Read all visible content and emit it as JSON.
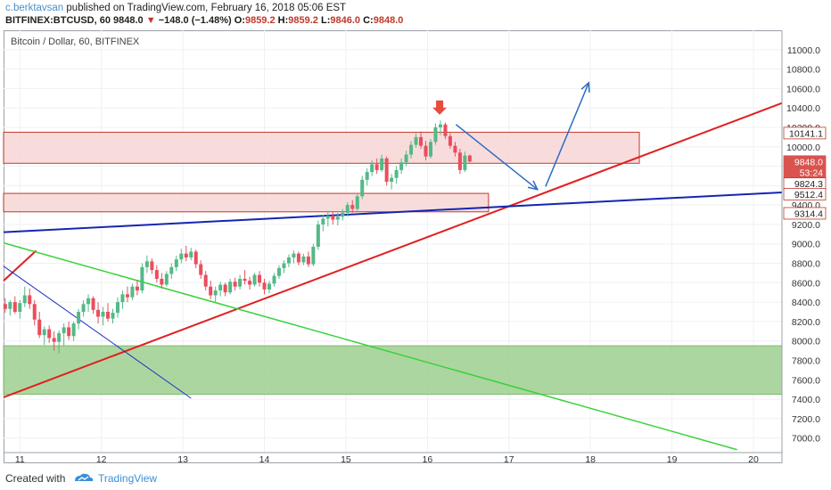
{
  "header": {
    "author": "c.berktavsan",
    "published_text": "published on TradingView.com, February 16, 2018 05:06 EST",
    "symbol": "BITFINEX:BTCUSD, 60",
    "last": "9848.0",
    "change": "−148.0 (−1.48%)",
    "o_label": "O:",
    "o": "9859.2",
    "h_label": "H:",
    "h": "9859.2",
    "l_label": "L:",
    "l": "9846.0",
    "c_label": "C:",
    "c": "9848.0"
  },
  "footer": {
    "created": "Created with",
    "brand": "TradingView"
  },
  "chart_data": {
    "type": "candlestick",
    "title": "Bitcoin / Dollar, 60, BITFINEX",
    "x_ticks": [
      "11",
      "12",
      "13",
      "14",
      "15",
      "16",
      "17",
      "18",
      "19",
      "20"
    ],
    "y_ticks": [
      7000,
      7200,
      7400,
      7600,
      7800,
      8000,
      8200,
      8400,
      8600,
      8800,
      9000,
      9200,
      9400,
      9600,
      9800,
      10000,
      10200,
      10400,
      10600,
      10800,
      11000
    ],
    "ylim": [
      6850,
      11200
    ],
    "xlim": [
      10.8,
      20.35
    ],
    "price_labels": [
      {
        "text": "10141.1",
        "value": 10141.1,
        "bg": "#ffffff",
        "color": "#222222"
      },
      {
        "text": "9848.0",
        "value": 9848.0,
        "bg": "#d9534f",
        "color": "#ffffff"
      },
      {
        "text": "53:24",
        "value": 9735,
        "bg": "#d9534f",
        "color": "#ffffff"
      },
      {
        "text": "9824.3",
        "value": 9824.3,
        "bg": "#ffffff",
        "color": "#222222",
        "y_val": 9620
      },
      {
        "text": "9512.4",
        "value": 9512.4,
        "bg": "#ffffff",
        "color": "#222222"
      },
      {
        "text": "9314.4",
        "value": 9314.4,
        "bg": "#ffffff",
        "color": "#222222"
      }
    ],
    "zones": [
      {
        "x1": 10.8,
        "x2": 18.6,
        "y1": 9830,
        "y2": 10150,
        "fill": "#f7d6d6",
        "stroke": "#c0392b"
      },
      {
        "x1": 10.8,
        "x2": 16.75,
        "y1": 9330,
        "y2": 9520,
        "fill": "#f7d6d6",
        "stroke": "#c0392b"
      },
      {
        "x1": 10.8,
        "x2": 20.35,
        "y1": 7450,
        "y2": 7950,
        "fill": "#9ecf8f",
        "stroke": "#7fb86f"
      }
    ],
    "lines": [
      {
        "x1": 10.8,
        "y1": 7420,
        "x2": 20.35,
        "y2": 10450,
        "color": "#e02020",
        "width": 2
      },
      {
        "x1": 10.8,
        "y1": 8620,
        "x2": 11.2,
        "y2": 8930,
        "color": "#e02020",
        "width": 2
      },
      {
        "x1": 10.8,
        "y1": 9120,
        "x2": 20.35,
        "y2": 9530,
        "color": "#1525b0",
        "width": 2
      },
      {
        "x1": 10.8,
        "y1": 9010,
        "x2": 19.8,
        "y2": 6880,
        "color": "#3ad23a",
        "width": 1.5
      },
      {
        "x1": 10.8,
        "y1": 8770,
        "x2": 13.1,
        "y2": 7410,
        "color": "#2030c0",
        "width": 1
      },
      {
        "x1": 16.35,
        "y1": 10230,
        "x2": 17.35,
        "y2": 9560,
        "color": "#2b6cc4",
        "width": 1.5,
        "arrow": true
      },
      {
        "x1": 17.45,
        "y1": 9590,
        "x2": 17.98,
        "y2": 10660,
        "color": "#2b6cc4",
        "width": 1.5,
        "arrow": true
      }
    ],
    "marker": {
      "x": 16.15,
      "y": 10330,
      "color": "#e74c3c"
    },
    "candles": [
      {
        "t": 10.82,
        "o": 8380,
        "h": 8440,
        "l": 8290,
        "c": 8330
      },
      {
        "t": 10.88,
        "o": 8330,
        "h": 8420,
        "l": 8260,
        "c": 8400
      },
      {
        "t": 10.94,
        "o": 8400,
        "h": 8460,
        "l": 8280,
        "c": 8300
      },
      {
        "t": 11.0,
        "o": 8300,
        "h": 8420,
        "l": 8230,
        "c": 8390
      },
      {
        "t": 11.06,
        "o": 8390,
        "h": 8560,
        "l": 8350,
        "c": 8470
      },
      {
        "t": 11.12,
        "o": 8470,
        "h": 8540,
        "l": 8330,
        "c": 8380
      },
      {
        "t": 11.18,
        "o": 8380,
        "h": 8420,
        "l": 8160,
        "c": 8220
      },
      {
        "t": 11.24,
        "o": 8220,
        "h": 8300,
        "l": 8030,
        "c": 8060
      },
      {
        "t": 11.3,
        "o": 8060,
        "h": 8150,
        "l": 7960,
        "c": 8120
      },
      {
        "t": 11.36,
        "o": 8120,
        "h": 8160,
        "l": 7980,
        "c": 8030
      },
      {
        "t": 11.42,
        "o": 8030,
        "h": 8100,
        "l": 7900,
        "c": 7990
      },
      {
        "t": 11.48,
        "o": 7990,
        "h": 8110,
        "l": 7870,
        "c": 8080
      },
      {
        "t": 11.54,
        "o": 8080,
        "h": 8180,
        "l": 7950,
        "c": 8140
      },
      {
        "t": 11.6,
        "o": 8140,
        "h": 8200,
        "l": 8010,
        "c": 8050
      },
      {
        "t": 11.66,
        "o": 8050,
        "h": 8200,
        "l": 8000,
        "c": 8180
      },
      {
        "t": 11.72,
        "o": 8180,
        "h": 8330,
        "l": 8120,
        "c": 8300
      },
      {
        "t": 11.78,
        "o": 8300,
        "h": 8420,
        "l": 8250,
        "c": 8380
      },
      {
        "t": 11.84,
        "o": 8380,
        "h": 8480,
        "l": 8300,
        "c": 8440
      },
      {
        "t": 11.9,
        "o": 8440,
        "h": 8460,
        "l": 8280,
        "c": 8320
      },
      {
        "t": 11.96,
        "o": 8320,
        "h": 8400,
        "l": 8180,
        "c": 8250
      },
      {
        "t": 12.02,
        "o": 8250,
        "h": 8350,
        "l": 8160,
        "c": 8300
      },
      {
        "t": 12.08,
        "o": 8300,
        "h": 8390,
        "l": 8200,
        "c": 8230
      },
      {
        "t": 12.14,
        "o": 8230,
        "h": 8330,
        "l": 8180,
        "c": 8290
      },
      {
        "t": 12.2,
        "o": 8290,
        "h": 8450,
        "l": 8240,
        "c": 8400
      },
      {
        "t": 12.26,
        "o": 8400,
        "h": 8520,
        "l": 8330,
        "c": 8480
      },
      {
        "t": 12.32,
        "o": 8480,
        "h": 8560,
        "l": 8400,
        "c": 8450
      },
      {
        "t": 12.38,
        "o": 8450,
        "h": 8590,
        "l": 8420,
        "c": 8560
      },
      {
        "t": 12.44,
        "o": 8560,
        "h": 8630,
        "l": 8470,
        "c": 8520
      },
      {
        "t": 12.5,
        "o": 8520,
        "h": 8800,
        "l": 8490,
        "c": 8760
      },
      {
        "t": 12.56,
        "o": 8760,
        "h": 8880,
        "l": 8700,
        "c": 8820
      },
      {
        "t": 12.62,
        "o": 8820,
        "h": 8850,
        "l": 8690,
        "c": 8730
      },
      {
        "t": 12.68,
        "o": 8730,
        "h": 8780,
        "l": 8600,
        "c": 8640
      },
      {
        "t": 12.74,
        "o": 8640,
        "h": 8700,
        "l": 8540,
        "c": 8580
      },
      {
        "t": 12.8,
        "o": 8580,
        "h": 8720,
        "l": 8560,
        "c": 8690
      },
      {
        "t": 12.86,
        "o": 8690,
        "h": 8800,
        "l": 8640,
        "c": 8760
      },
      {
        "t": 12.92,
        "o": 8760,
        "h": 8880,
        "l": 8720,
        "c": 8840
      },
      {
        "t": 12.98,
        "o": 8840,
        "h": 8950,
        "l": 8800,
        "c": 8900
      },
      {
        "t": 13.04,
        "o": 8900,
        "h": 8980,
        "l": 8820,
        "c": 8860
      },
      {
        "t": 13.1,
        "o": 8860,
        "h": 8960,
        "l": 8830,
        "c": 8920
      },
      {
        "t": 13.16,
        "o": 8920,
        "h": 8940,
        "l": 8750,
        "c": 8790
      },
      {
        "t": 13.22,
        "o": 8790,
        "h": 8830,
        "l": 8640,
        "c": 8680
      },
      {
        "t": 13.28,
        "o": 8680,
        "h": 8720,
        "l": 8520,
        "c": 8560
      },
      {
        "t": 13.34,
        "o": 8560,
        "h": 8620,
        "l": 8430,
        "c": 8470
      },
      {
        "t": 13.4,
        "o": 8470,
        "h": 8560,
        "l": 8400,
        "c": 8520
      },
      {
        "t": 13.46,
        "o": 8520,
        "h": 8610,
        "l": 8460,
        "c": 8580
      },
      {
        "t": 13.52,
        "o": 8580,
        "h": 8600,
        "l": 8460,
        "c": 8500
      },
      {
        "t": 13.58,
        "o": 8500,
        "h": 8640,
        "l": 8480,
        "c": 8610
      },
      {
        "t": 13.64,
        "o": 8610,
        "h": 8650,
        "l": 8520,
        "c": 8560
      },
      {
        "t": 13.7,
        "o": 8560,
        "h": 8680,
        "l": 8530,
        "c": 8640
      },
      {
        "t": 13.76,
        "o": 8640,
        "h": 8730,
        "l": 8580,
        "c": 8620
      },
      {
        "t": 13.82,
        "o": 8620,
        "h": 8660,
        "l": 8530,
        "c": 8580
      },
      {
        "t": 13.88,
        "o": 8580,
        "h": 8700,
        "l": 8560,
        "c": 8680
      },
      {
        "t": 13.94,
        "o": 8680,
        "h": 8720,
        "l": 8560,
        "c": 8600
      },
      {
        "t": 14.0,
        "o": 8600,
        "h": 8640,
        "l": 8480,
        "c": 8530
      },
      {
        "t": 14.06,
        "o": 8530,
        "h": 8620,
        "l": 8490,
        "c": 8590
      },
      {
        "t": 14.12,
        "o": 8590,
        "h": 8700,
        "l": 8560,
        "c": 8670
      },
      {
        "t": 14.18,
        "o": 8670,
        "h": 8780,
        "l": 8640,
        "c": 8750
      },
      {
        "t": 14.24,
        "o": 8750,
        "h": 8830,
        "l": 8700,
        "c": 8800
      },
      {
        "t": 14.3,
        "o": 8800,
        "h": 8890,
        "l": 8760,
        "c": 8860
      },
      {
        "t": 14.36,
        "o": 8860,
        "h": 8930,
        "l": 8800,
        "c": 8900
      },
      {
        "t": 14.42,
        "o": 8900,
        "h": 8920,
        "l": 8780,
        "c": 8810
      },
      {
        "t": 14.48,
        "o": 8810,
        "h": 8900,
        "l": 8780,
        "c": 8870
      },
      {
        "t": 14.54,
        "o": 8870,
        "h": 8920,
        "l": 8760,
        "c": 8790
      },
      {
        "t": 14.6,
        "o": 8790,
        "h": 9000,
        "l": 8770,
        "c": 8970
      },
      {
        "t": 14.66,
        "o": 8970,
        "h": 9240,
        "l": 8940,
        "c": 9200
      },
      {
        "t": 14.72,
        "o": 9200,
        "h": 9300,
        "l": 9130,
        "c": 9260
      },
      {
        "t": 14.78,
        "o": 9260,
        "h": 9340,
        "l": 9180,
        "c": 9290
      },
      {
        "t": 14.84,
        "o": 9290,
        "h": 9330,
        "l": 9200,
        "c": 9250
      },
      {
        "t": 14.9,
        "o": 9250,
        "h": 9320,
        "l": 9190,
        "c": 9280
      },
      {
        "t": 14.96,
        "o": 9280,
        "h": 9360,
        "l": 9240,
        "c": 9320
      },
      {
        "t": 15.02,
        "o": 9320,
        "h": 9430,
        "l": 9280,
        "c": 9400
      },
      {
        "t": 15.08,
        "o": 9400,
        "h": 9450,
        "l": 9320,
        "c": 9360
      },
      {
        "t": 15.14,
        "o": 9360,
        "h": 9520,
        "l": 9340,
        "c": 9490
      },
      {
        "t": 15.2,
        "o": 9490,
        "h": 9700,
        "l": 9460,
        "c": 9660
      },
      {
        "t": 15.26,
        "o": 9660,
        "h": 9780,
        "l": 9600,
        "c": 9740
      },
      {
        "t": 15.32,
        "o": 9740,
        "h": 9860,
        "l": 9700,
        "c": 9820
      },
      {
        "t": 15.38,
        "o": 9820,
        "h": 9880,
        "l": 9720,
        "c": 9760
      },
      {
        "t": 15.44,
        "o": 9760,
        "h": 9920,
        "l": 9740,
        "c": 9880
      },
      {
        "t": 15.5,
        "o": 9880,
        "h": 9900,
        "l": 9600,
        "c": 9640
      },
      {
        "t": 15.56,
        "o": 9640,
        "h": 9720,
        "l": 9560,
        "c": 9680
      },
      {
        "t": 15.62,
        "o": 9680,
        "h": 9800,
        "l": 9620,
        "c": 9760
      },
      {
        "t": 15.68,
        "o": 9760,
        "h": 9880,
        "l": 9720,
        "c": 9840
      },
      {
        "t": 15.74,
        "o": 9840,
        "h": 9960,
        "l": 9800,
        "c": 9920
      },
      {
        "t": 15.8,
        "o": 9920,
        "h": 10060,
        "l": 9880,
        "c": 10020
      },
      {
        "t": 15.86,
        "o": 10020,
        "h": 10140,
        "l": 9990,
        "c": 10100
      },
      {
        "t": 15.92,
        "o": 10100,
        "h": 10160,
        "l": 9980,
        "c": 10010
      },
      {
        "t": 15.98,
        "o": 10010,
        "h": 10060,
        "l": 9860,
        "c": 9900
      },
      {
        "t": 16.04,
        "o": 9900,
        "h": 10080,
        "l": 9880,
        "c": 10050
      },
      {
        "t": 16.1,
        "o": 10050,
        "h": 10240,
        "l": 10020,
        "c": 10200
      },
      {
        "t": 16.16,
        "o": 10200,
        "h": 10270,
        "l": 10120,
        "c": 10230
      },
      {
        "t": 16.22,
        "o": 10230,
        "h": 10250,
        "l": 10080,
        "c": 10110
      },
      {
        "t": 16.28,
        "o": 10110,
        "h": 10140,
        "l": 9980,
        "c": 10010
      },
      {
        "t": 16.34,
        "o": 10010,
        "h": 10050,
        "l": 9900,
        "c": 9940
      },
      {
        "t": 16.4,
        "o": 9940,
        "h": 9980,
        "l": 9720,
        "c": 9760
      },
      {
        "t": 16.46,
        "o": 9760,
        "h": 9950,
        "l": 9740,
        "c": 9910
      },
      {
        "t": 16.52,
        "o": 9910,
        "h": 9920,
        "l": 9840,
        "c": 9848
      }
    ]
  }
}
